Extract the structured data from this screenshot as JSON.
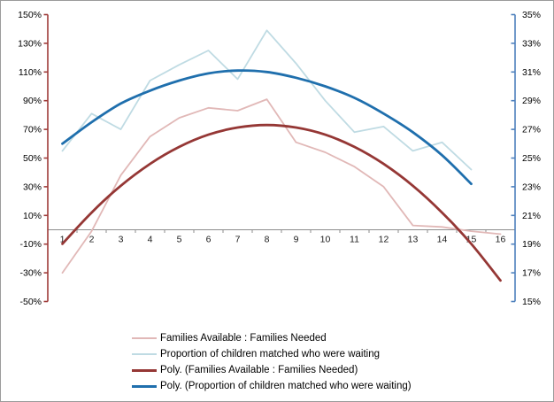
{
  "chart_data": {
    "type": "line",
    "title": "",
    "x_categories": [
      "1",
      "2",
      "3",
      "4",
      "5",
      "6",
      "7",
      "8",
      "9",
      "10",
      "11",
      "12",
      "13",
      "14",
      "15",
      "16"
    ],
    "axes": {
      "left": {
        "min": -50,
        "max": 150,
        "step": 20,
        "tick_labels": [
          "150%",
          "130%",
          "110%",
          "90%",
          "70%",
          "50%",
          "30%",
          "10%",
          "-10%",
          "-30%",
          "-50%"
        ],
        "axis_color": "#9E3B39",
        "label_color": "#000000"
      },
      "right": {
        "min": 15,
        "max": 35,
        "step": 2,
        "tick_labels": [
          "35%",
          "33%",
          "31%",
          "29%",
          "27%",
          "25%",
          "23%",
          "21%",
          "19%",
          "17%",
          "15%"
        ],
        "axis_color": "#4F81BD",
        "label_color": "#000000"
      },
      "x": {
        "baseline_value_left_axis": 0,
        "line_color": "#8C8C8C",
        "label_color": "#1A1A1A"
      }
    },
    "grid": "off",
    "legend_position": "bottom-left",
    "series": [
      {
        "key": "families-ratio",
        "name": "Families Available : Families Needed",
        "axis": "left",
        "color": "#E1B8B7",
        "width": 1.8,
        "smooth": false,
        "values": [
          -30,
          -1,
          38,
          65,
          78,
          85,
          83,
          91,
          61,
          54,
          44,
          30,
          3,
          2,
          -1,
          -3
        ]
      },
      {
        "key": "proportion-waiting",
        "name": "Proportion of children matched who were waiting",
        "axis": "right",
        "color": "#BFDBE3",
        "width": 1.8,
        "smooth": false,
        "values": [
          25.5,
          28.1,
          27.0,
          30.4,
          31.5,
          32.5,
          30.5,
          33.9,
          31.6,
          29.0,
          26.8,
          27.2,
          25.5,
          26.1,
          24.2
        ]
      },
      {
        "key": "poly-families-ratio",
        "name": "Poly. (Families Available : Families Needed)",
        "axis": "left",
        "color": "#953735",
        "width": 2.8,
        "smooth": true,
        "values": [
          -9.8,
          12.0,
          30.7,
          45.9,
          57.8,
          66.3,
          71.3,
          73.0,
          71.3,
          66.3,
          57.8,
          45.9,
          30.7,
          12.0,
          -9.8,
          -35.4
        ]
      },
      {
        "key": "poly-proportion-waiting",
        "name": "Poly. (Proportion of children matched who were waiting)",
        "axis": "right",
        "color": "#1F6FAD",
        "width": 2.8,
        "smooth": true,
        "values": [
          26.0,
          27.5,
          28.8,
          29.7,
          30.4,
          30.9,
          31.1,
          31.0,
          30.6,
          30.0,
          29.2,
          28.1,
          26.8,
          25.2,
          23.2
        ]
      }
    ]
  }
}
